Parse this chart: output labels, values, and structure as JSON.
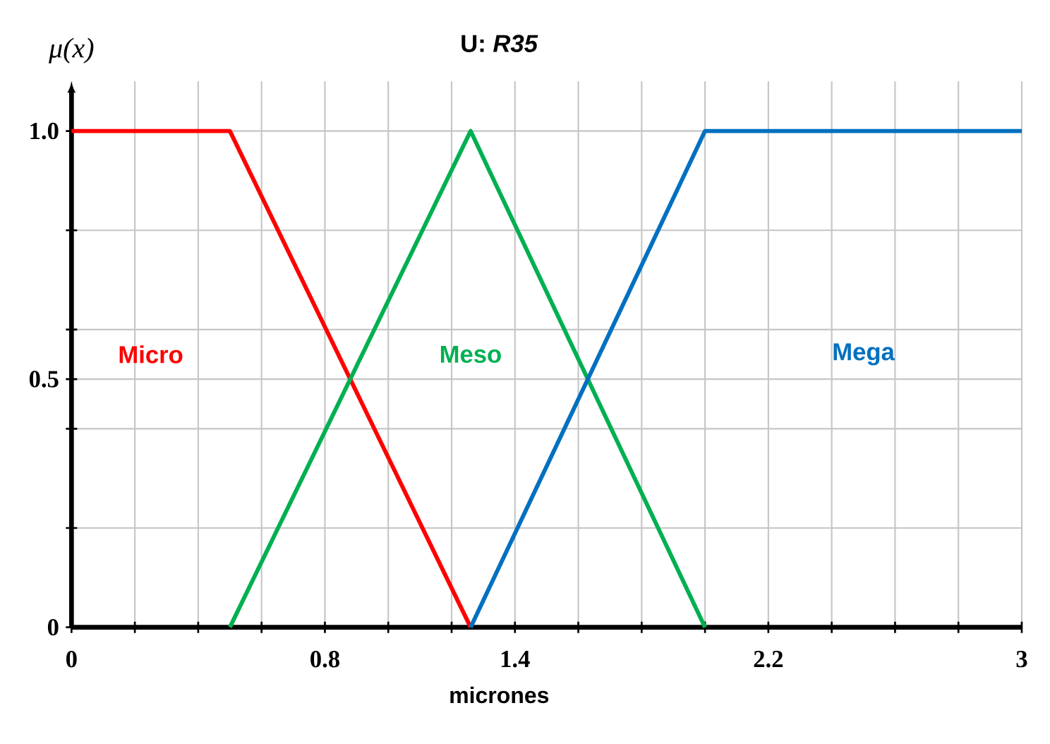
{
  "chart_data": {
    "type": "line",
    "title": "U: *R35*",
    "xlabel": "micrones",
    "ylabel": "μ(x)",
    "xlim": [
      0,
      3
    ],
    "ylim": [
      0,
      1.1
    ],
    "xticks": [
      0,
      {
        "value": 0.2,
        "label": null
      },
      {
        "value": 0.4,
        "label": null
      },
      {
        "value": 0.6,
        "label": null
      },
      0.8,
      {
        "value": 1.0,
        "label": null
      },
      {
        "value": 1.2,
        "label": null
      },
      1.4,
      {
        "value": 1.6,
        "label": null
      },
      {
        "value": 1.8,
        "label": null
      },
      {
        "value": 2.0,
        "label": null
      },
      2.2,
      {
        "value": 2.4,
        "label": null
      },
      {
        "value": 2.6,
        "label": null
      },
      {
        "value": 2.8,
        "label": null
      },
      3
    ],
    "yticks": [
      0,
      {
        "value": 0.2,
        "label": null
      },
      {
        "value": 0.4,
        "label": null
      },
      0.5,
      {
        "value": 0.6,
        "label": null
      },
      {
        "value": 0.8,
        "label": null
      },
      {
        "value": 1.0,
        "label": "1.0"
      }
    ],
    "grid": true,
    "series": [
      {
        "name": "Micro",
        "color": "#ff0000",
        "x": [
          0,
          0.5,
          1.26
        ],
        "values": [
          1,
          1,
          0
        ]
      },
      {
        "name": "Meso",
        "color": "#00b050",
        "x": [
          0.5,
          1.26,
          2.0
        ],
        "values": [
          0,
          1,
          0
        ]
      },
      {
        "name": "Mega",
        "color": "#0070c0",
        "x": [
          1.26,
          2.0,
          3
        ],
        "values": [
          0,
          1,
          1
        ]
      }
    ]
  }
}
